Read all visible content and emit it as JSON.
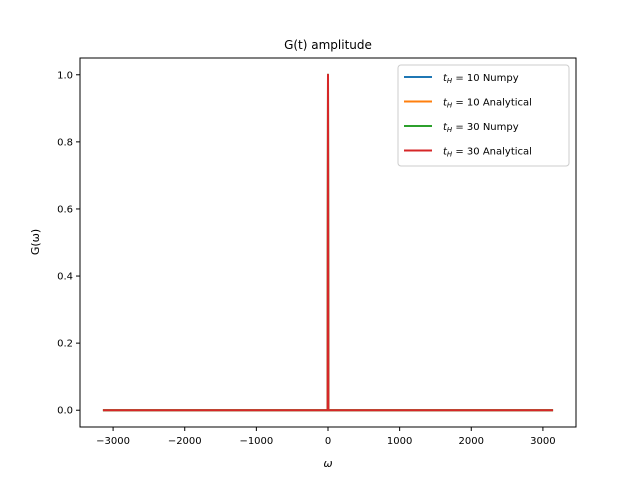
{
  "chart_data": {
    "type": "line",
    "title": "G(t) amplitude",
    "xlabel": "ω",
    "ylabel": "G(ω)",
    "xlim": [
      -3462,
      3462
    ],
    "ylim": [
      -0.05,
      1.05
    ],
    "xticks": [
      -3000,
      -2000,
      -1000,
      0,
      1000,
      2000,
      3000
    ],
    "xtick_labels": [
      "−3000",
      "−2000",
      "−1000",
      "0",
      "1000",
      "2000",
      "3000"
    ],
    "yticks": [
      0.0,
      0.2,
      0.4,
      0.6,
      0.8,
      1.0
    ],
    "ytick_labels": [
      "0.0",
      "0.2",
      "0.4",
      "0.6",
      "0.8",
      "1.0"
    ],
    "grid": false,
    "legend_position": "top-right",
    "series": [
      {
        "name_prefix": "t",
        "name_sub": "H",
        "name_rest": " = 10 Numpy",
        "color": "#1f77b4",
        "x": [
          -3141.6,
          -2000,
          -1000,
          -5,
          0,
          5,
          1000,
          2000,
          3141.6
        ],
        "y": [
          0,
          0,
          0,
          0,
          1.0,
          0,
          0,
          0,
          0
        ]
      },
      {
        "name_prefix": "t",
        "name_sub": "H",
        "name_rest": " = 10 Analytical",
        "color": "#ff7f0e",
        "x": [
          -3141.6,
          -2000,
          -1000,
          -5,
          0,
          5,
          1000,
          2000,
          3141.6
        ],
        "y": [
          0,
          0,
          0,
          0,
          1.0,
          0,
          0,
          0,
          0
        ]
      },
      {
        "name_prefix": "t",
        "name_sub": "H",
        "name_rest": " = 30 Numpy",
        "color": "#2ca02c",
        "x": [
          -3141.6,
          -2000,
          -1000,
          -5,
          0,
          5,
          1000,
          2000,
          3141.6
        ],
        "y": [
          0,
          0,
          0,
          0,
          1.0,
          0,
          0,
          0,
          0
        ]
      },
      {
        "name_prefix": "t",
        "name_sub": "H",
        "name_rest": " = 30 Analytical",
        "color": "#d62728",
        "x": [
          -3141.6,
          -2000,
          -1000,
          -5,
          0,
          5,
          1000,
          2000,
          3141.6
        ],
        "y": [
          0,
          0,
          0,
          0,
          1.0,
          0,
          0,
          0,
          0
        ]
      }
    ]
  }
}
